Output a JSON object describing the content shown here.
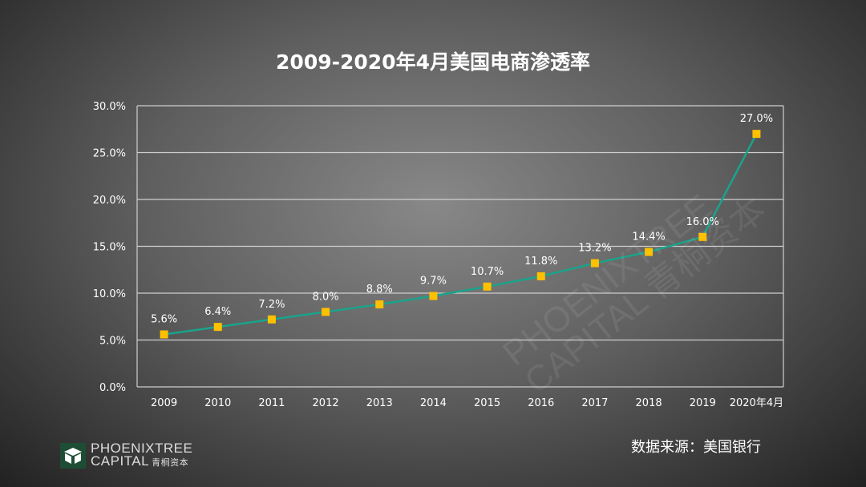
{
  "chart_data": {
    "type": "line",
    "title": "2009-2020年4月美国电商渗透率",
    "categories": [
      "2009",
      "2010",
      "2011",
      "2012",
      "2013",
      "2014",
      "2015",
      "2016",
      "2017",
      "2018",
      "2019",
      "2020年4月"
    ],
    "values": [
      5.6,
      6.4,
      7.2,
      8.0,
      8.8,
      9.7,
      10.7,
      11.8,
      13.2,
      14.4,
      16.0,
      27.0
    ],
    "data_labels": [
      "5.6%",
      "6.4%",
      "7.2%",
      "8.0%",
      "8.8%",
      "9.7%",
      "10.7%",
      "11.8%",
      "13.2%",
      "14.4%",
      "16.0%",
      "27.0%"
    ],
    "ylim": [
      0,
      30
    ],
    "yticks": [
      0,
      5,
      10,
      15,
      20,
      25,
      30
    ],
    "ytick_labels": [
      "0.0%",
      "5.0%",
      "10.0%",
      "15.0%",
      "20.0%",
      "25.0%",
      "30.0%"
    ],
    "grid": true,
    "xlabel": "",
    "ylabel": "",
    "line_color": "#1aa38c",
    "marker_color": "#ffc000"
  },
  "source": "数据来源：美国银行",
  "logo": {
    "line1": "PHOENIXTREE",
    "line2": "CAPITAL",
    "cn": "青桐资本"
  }
}
